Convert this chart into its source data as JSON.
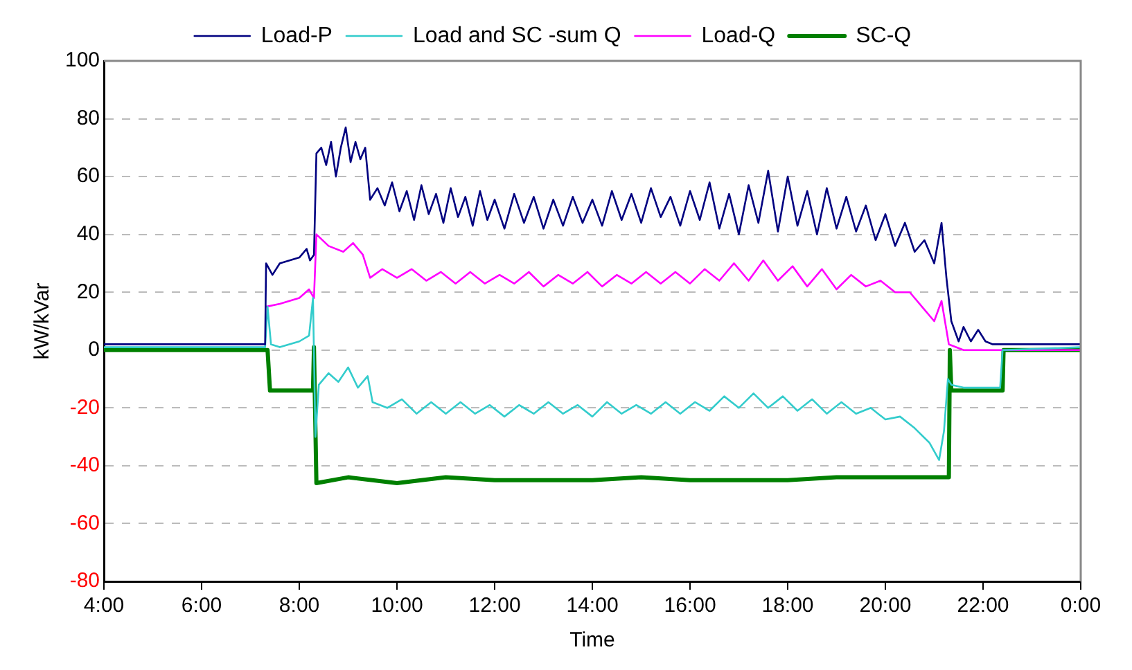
{
  "chart_data": {
    "type": "line",
    "xlabel": "Time",
    "ylabel": "kW/kVar",
    "xlim": [
      4,
      24
    ],
    "xticks": [
      {
        "value": 4,
        "label": "4:00"
      },
      {
        "value": 6,
        "label": "6:00"
      },
      {
        "value": 8,
        "label": "8:00"
      },
      {
        "value": 10,
        "label": "10:00"
      },
      {
        "value": 12,
        "label": "12:00"
      },
      {
        "value": 14,
        "label": "14:00"
      },
      {
        "value": 16,
        "label": "16:00"
      },
      {
        "value": 18,
        "label": "18:00"
      },
      {
        "value": 20,
        "label": "20:00"
      },
      {
        "value": 22,
        "label": "22:00"
      },
      {
        "value": 24,
        "label": "0:00"
      }
    ],
    "ylim": [
      -80,
      100
    ],
    "yticks": [
      -80,
      -60,
      -40,
      -20,
      0,
      20,
      40,
      60,
      80,
      100
    ],
    "grid": "y",
    "legend": "top",
    "marker": "none",
    "line_style": "solid",
    "series": [
      {
        "name": "Load-P",
        "color": "#000080",
        "x": [
          4,
          5,
          6,
          7,
          7.3,
          7.32,
          7.45,
          7.6,
          7.8,
          8.0,
          8.15,
          8.22,
          8.3,
          8.35,
          8.45,
          8.55,
          8.65,
          8.75,
          8.85,
          8.95,
          9.05,
          9.15,
          9.25,
          9.35,
          9.45,
          9.6,
          9.75,
          9.9,
          10.05,
          10.2,
          10.35,
          10.5,
          10.65,
          10.8,
          10.95,
          11.1,
          11.25,
          11.4,
          11.55,
          11.7,
          11.85,
          12.0,
          12.2,
          12.4,
          12.6,
          12.8,
          13.0,
          13.2,
          13.4,
          13.6,
          13.8,
          14.0,
          14.2,
          14.4,
          14.6,
          14.8,
          15.0,
          15.2,
          15.4,
          15.6,
          15.8,
          16.0,
          16.2,
          16.4,
          16.6,
          16.8,
          17.0,
          17.2,
          17.4,
          17.6,
          17.8,
          18.0,
          18.2,
          18.4,
          18.6,
          18.8,
          19.0,
          19.2,
          19.4,
          19.6,
          19.8,
          20.0,
          20.2,
          20.4,
          20.6,
          20.8,
          21.0,
          21.15,
          21.25,
          21.35,
          21.5,
          21.6,
          21.75,
          21.9,
          22.05,
          22.2,
          24
        ],
        "values": [
          2,
          2,
          2,
          2,
          2,
          30,
          26,
          30,
          31,
          32,
          35,
          31,
          33,
          68,
          70,
          64,
          72,
          60,
          70,
          77,
          65,
          72,
          66,
          70,
          52,
          56,
          50,
          58,
          48,
          55,
          45,
          57,
          47,
          54,
          44,
          56,
          46,
          53,
          43,
          55,
          45,
          52,
          42,
          54,
          44,
          53,
          42,
          52,
          43,
          53,
          44,
          52,
          43,
          55,
          45,
          54,
          44,
          56,
          46,
          53,
          43,
          55,
          45,
          58,
          42,
          54,
          40,
          57,
          44,
          62,
          41,
          60,
          43,
          55,
          40,
          56,
          42,
          53,
          41,
          50,
          38,
          47,
          36,
          44,
          34,
          38,
          30,
          44,
          25,
          10,
          3,
          8,
          3,
          7,
          3,
          2,
          2
        ]
      },
      {
        "name": "Load and SC -sum Q",
        "color": "#33cccc",
        "x": [
          4,
          7.3,
          7.35,
          7.42,
          7.6,
          8.0,
          8.2,
          8.28,
          8.33,
          8.4,
          8.6,
          8.8,
          9.0,
          9.2,
          9.4,
          9.5,
          9.8,
          10.1,
          10.4,
          10.7,
          11.0,
          11.3,
          11.6,
          11.9,
          12.2,
          12.5,
          12.8,
          13.1,
          13.4,
          13.7,
          14.0,
          14.3,
          14.6,
          14.9,
          15.2,
          15.5,
          15.8,
          16.1,
          16.4,
          16.7,
          17.0,
          17.3,
          17.6,
          17.9,
          18.2,
          18.5,
          18.8,
          19.1,
          19.4,
          19.7,
          20.0,
          20.3,
          20.6,
          20.9,
          21.1,
          21.2,
          21.28,
          21.35,
          21.6,
          22.0,
          22.35,
          22.4,
          24
        ],
        "values": [
          1,
          1,
          15,
          2,
          1,
          3,
          5,
          18,
          -30,
          -12,
          -8,
          -11,
          -6,
          -13,
          -9,
          -18,
          -20,
          -17,
          -22,
          -18,
          -22,
          -18,
          -22,
          -19,
          -23,
          -19,
          -22,
          -18,
          -22,
          -19,
          -23,
          -18,
          -22,
          -19,
          -22,
          -18,
          -22,
          -18,
          -21,
          -16,
          -20,
          -15,
          -20,
          -16,
          -21,
          -17,
          -22,
          -18,
          -22,
          -20,
          -24,
          -23,
          -27,
          -32,
          -38,
          -28,
          -10,
          -12,
          -13,
          -13,
          -13,
          0,
          1
        ]
      },
      {
        "name": "Load-Q",
        "color": "#ff00ff",
        "x": [
          7.32,
          7.6,
          8.0,
          8.2,
          8.3,
          8.35,
          8.6,
          8.9,
          9.1,
          9.3,
          9.45,
          9.7,
          10.0,
          10.3,
          10.6,
          10.9,
          11.2,
          11.5,
          11.8,
          12.1,
          12.4,
          12.7,
          13.0,
          13.3,
          13.6,
          13.9,
          14.2,
          14.5,
          14.8,
          15.1,
          15.4,
          15.7,
          16.0,
          16.3,
          16.6,
          16.9,
          17.2,
          17.5,
          17.8,
          18.1,
          18.4,
          18.7,
          19.0,
          19.3,
          19.6,
          19.9,
          20.2,
          20.5,
          20.8,
          21.0,
          21.15,
          21.3,
          21.6,
          22.0,
          24
        ],
        "values": [
          15,
          16,
          18,
          21,
          18,
          40,
          36,
          34,
          37,
          33,
          25,
          28,
          25,
          28,
          24,
          27,
          23,
          27,
          23,
          26,
          23,
          27,
          22,
          26,
          23,
          27,
          22,
          26,
          23,
          27,
          23,
          27,
          23,
          28,
          24,
          30,
          24,
          31,
          24,
          29,
          22,
          28,
          21,
          26,
          22,
          24,
          20,
          20,
          14,
          10,
          17,
          2,
          0,
          0,
          0
        ]
      },
      {
        "name": "SC-Q",
        "color": "#008000",
        "x": [
          4,
          7.35,
          7.4,
          8.28,
          8.3,
          8.35,
          9,
          10,
          11,
          12,
          13,
          14,
          15,
          16,
          17,
          18,
          19,
          20,
          21.3,
          21.32,
          21.35,
          22.4,
          22.42,
          24
        ],
        "values": [
          0,
          0,
          -14,
          -14,
          1,
          -46,
          -44,
          -46,
          -44,
          -45,
          -45,
          -45,
          -44,
          -45,
          -45,
          -45,
          -44,
          -44,
          -44,
          0,
          -14,
          -14,
          0,
          0
        ]
      }
    ]
  }
}
